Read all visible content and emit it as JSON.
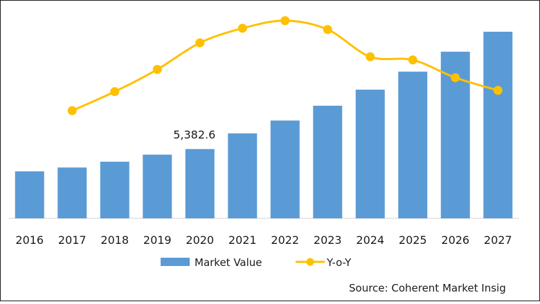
{
  "chart_data": {
    "type": "bar",
    "categories": [
      "2016",
      "2017",
      "2018",
      "2019",
      "2020",
      "2021",
      "2022",
      "2023",
      "2024",
      "2025",
      "2026",
      "2027"
    ],
    "series": [
      {
        "name": "Market Value",
        "type": "bar",
        "values": [
          3650,
          3950,
          4400,
          4950,
          5382.6,
          6600,
          7600,
          8750,
          10000,
          11400,
          12950,
          14500
        ],
        "color": "#5b9bd5"
      },
      {
        "name": "Y-o-Y",
        "type": "line",
        "values": [
          null,
          8.0,
          11.0,
          14.5,
          18.7,
          21.0,
          22.2,
          20.8,
          16.5,
          16.0,
          13.2,
          11.2
        ],
        "color": "#ffc000"
      }
    ],
    "data_labels": [
      {
        "category": "2020",
        "text": "5,382.6"
      }
    ],
    "ylim_bar": [
      0,
      16000
    ],
    "ylim_line": [
      -9,
      23.5
    ],
    "legend": {
      "position": "bottom"
    },
    "grid": false,
    "source": "Source: Coherent Market Insig"
  }
}
